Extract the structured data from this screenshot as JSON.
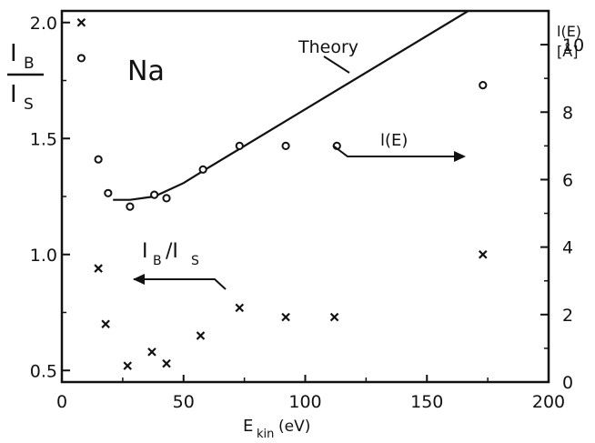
{
  "chart_data": {
    "type": "scatter",
    "element_label": "Na",
    "x_axis": {
      "label_main": "E",
      "label_sub": "kin",
      "label_unit": "(eV)",
      "range": [
        0,
        200
      ],
      "ticks": [
        0,
        50,
        100,
        150,
        200
      ]
    },
    "y_left": {
      "label_num_main": "I",
      "label_num_sub": "B",
      "label_den_main": "I",
      "label_den_sub": "S",
      "range": [
        0.45,
        2.05
      ],
      "ticks": [
        0.5,
        1.0,
        1.5,
        2.0
      ],
      "tick_labels": [
        "0.5",
        "1.0",
        "1.5",
        "2.0"
      ]
    },
    "y_right": {
      "label_line1": "l(E)",
      "label_line2": "[Å]",
      "range": [
        0,
        11
      ],
      "ticks": [
        0,
        2,
        4,
        6,
        8,
        10
      ],
      "tick_labels": [
        "0",
        "2",
        "4",
        "6",
        "8",
        "10"
      ]
    },
    "series": [
      {
        "name": "I_B/I_S",
        "marker": "cross",
        "axis": "left",
        "legend_main": "I",
        "legend_sub1": "B",
        "legend_slash": "/I",
        "legend_sub2": "S",
        "x": [
          8,
          15,
          18,
          27,
          37,
          43,
          57,
          73,
          92,
          112,
          173
        ],
        "y": [
          2.0,
          0.94,
          0.7,
          0.52,
          0.58,
          0.53,
          0.65,
          0.77,
          0.73,
          0.73,
          1.0
        ]
      },
      {
        "name": "l(E)",
        "marker": "circle",
        "axis": "right",
        "legend_label": "l(E)",
        "x": [
          8,
          15,
          19,
          28,
          38,
          43,
          58,
          73,
          92,
          113,
          173
        ],
        "y": [
          9.6,
          6.6,
          5.6,
          5.2,
          5.55,
          5.45,
          6.3,
          7.0,
          7.0,
          7.0,
          8.8
        ]
      }
    ],
    "theory": {
      "label": "Theory",
      "axis": "right",
      "points": [
        [
          21,
          5.4
        ],
        [
          28,
          5.4
        ],
        [
          38,
          5.5
        ],
        [
          50,
          5.9
        ],
        [
          59,
          6.3
        ],
        [
          167,
          11.0
        ]
      ]
    }
  }
}
